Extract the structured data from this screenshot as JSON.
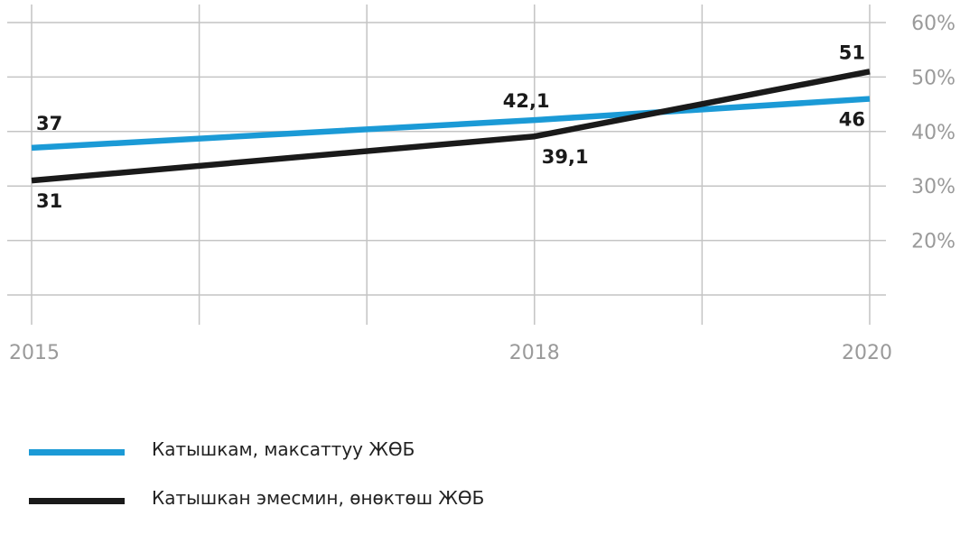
{
  "chart_data": {
    "type": "line",
    "x": [
      2015,
      2018,
      2020
    ],
    "x_ticks": [
      "2015",
      "2018",
      "2020"
    ],
    "xlim": [
      2015,
      2020
    ],
    "ylim": [
      10,
      60
    ],
    "y_ticks": [
      "20%",
      "30%",
      "40%",
      "50%",
      "60%"
    ],
    "y_tick_values": [
      20,
      30,
      40,
      50,
      60
    ],
    "y_axis_side": "right",
    "grid": true,
    "series": [
      {
        "name": "Катышкам, максаттуу ЖӨБ",
        "color": "#1b9ad6",
        "values": [
          37,
          42.1,
          46
        ],
        "labels": [
          "37",
          "42,1",
          "46"
        ]
      },
      {
        "name": "Катышкан эмесмин, өнөктөш ЖӨБ",
        "color": "#1a1a1a",
        "values": [
          31,
          39.1,
          51
        ],
        "labels": [
          "31",
          "39,1",
          "51"
        ]
      }
    ],
    "legend_position": "bottom-left"
  }
}
